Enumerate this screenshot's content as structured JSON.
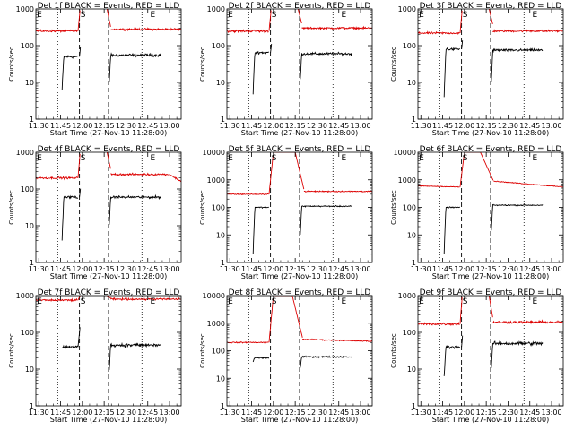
{
  "layout": {
    "rows": 3,
    "cols": 3
  },
  "common": {
    "ylabel": "Counts/sec",
    "xlabel": "Start Time (27-Nov-10 11:28:00)",
    "xticks": [
      "11:30",
      "11:45",
      "12:00",
      "12:15",
      "12:30",
      "12:45",
      "13:00"
    ],
    "xrange_minutes": [
      0,
      100
    ],
    "colors": {
      "events": "#000000",
      "lld": "#dd0000",
      "axes": "#000000"
    }
  },
  "chart_data": [
    {
      "type": "line",
      "title": "Det 1f BLACK = Events, RED = LLD",
      "yticks": [
        "1",
        "10",
        "100",
        "1000"
      ],
      "ylim": [
        1,
        1000
      ],
      "markers": [
        {
          "t": 0,
          "label": "E"
        },
        {
          "t": 30,
          "label": "S"
        },
        {
          "t": 78,
          "label": "E"
        }
      ],
      "dotted_x": [
        15,
        73
      ],
      "dashed_x": [
        30,
        50
      ],
      "series": [
        {
          "name": "Events",
          "segments": [
            {
              "x0": 18,
              "x1": 29,
              "y": 50,
              "ramp_from": 6,
              "ramp_len": 1.2,
              "noise": 0.06
            },
            {
              "x0": 30,
              "x1": 30.8,
              "y": 100,
              "ramp_from": 50,
              "ramp_len": 0.8,
              "noise": 0.0
            },
            {
              "x0": 50.5,
              "x1": 86,
              "y": 55,
              "ramp_from": 10,
              "ramp_len": 1.0,
              "noise": 0.06
            }
          ]
        },
        {
          "name": "LLD",
          "segments": [
            {
              "x0": 0,
              "x1": 29,
              "y": 250,
              "noise": 0.04
            },
            {
              "x0": 29,
              "x1": 30.5,
              "y": 250,
              "ramp_to": 1000,
              "noise": 0.0
            },
            {
              "x0": 49,
              "x1": 51.5,
              "y": 1000,
              "ramp_to": 320,
              "noise": 0.0
            },
            {
              "x0": 51.5,
              "x1": 100,
              "y": 280,
              "noise": 0.04
            }
          ]
        }
      ]
    },
    {
      "type": "line",
      "title": "Det 2f BLACK = Events, RED = LLD",
      "yticks": [
        "1",
        "10",
        "100",
        "1000"
      ],
      "ylim": [
        1,
        1000
      ],
      "markers": [
        {
          "t": 0,
          "label": "E"
        },
        {
          "t": 30,
          "label": "S"
        },
        {
          "t": 78,
          "label": "E"
        }
      ],
      "dotted_x": [
        15,
        73
      ],
      "dashed_x": [
        30,
        50
      ],
      "series": [
        {
          "name": "Events",
          "segments": [
            {
              "x0": 18,
              "x1": 29,
              "y": 65,
              "ramp_from": 5,
              "ramp_len": 1.2,
              "noise": 0.05
            },
            {
              "x0": 30,
              "x1": 30.8,
              "y": 120,
              "ramp_from": 65,
              "ramp_len": 0.8,
              "noise": 0.0
            },
            {
              "x0": 50.5,
              "x1": 86,
              "y": 60,
              "ramp_from": 12,
              "ramp_len": 1.0,
              "noise": 0.05
            }
          ]
        },
        {
          "name": "LLD",
          "segments": [
            {
              "x0": 0,
              "x1": 29,
              "y": 250,
              "noise": 0.05
            },
            {
              "x0": 29,
              "x1": 30.5,
              "y": 250,
              "ramp_to": 1000,
              "noise": 0.0
            },
            {
              "x0": 49,
              "x1": 51.5,
              "y": 1000,
              "ramp_to": 400,
              "noise": 0.0
            },
            {
              "x0": 51.5,
              "x1": 100,
              "y": 300,
              "noise": 0.04
            }
          ]
        }
      ]
    },
    {
      "type": "line",
      "title": "Det 3f BLACK = Events, RED = LLD",
      "yticks": [
        "1",
        "10",
        "100",
        "1000"
      ],
      "ylim": [
        1,
        1000
      ],
      "markers": [
        {
          "t": 0,
          "label": "E"
        },
        {
          "t": 30,
          "label": "S"
        },
        {
          "t": 78,
          "label": "E"
        }
      ],
      "dotted_x": [
        15,
        73
      ],
      "dashed_x": [
        30,
        50
      ],
      "series": [
        {
          "name": "Events",
          "segments": [
            {
              "x0": 18,
              "x1": 29,
              "y": 80,
              "ramp_from": 4,
              "ramp_len": 1.2,
              "noise": 0.05
            },
            {
              "x0": 30,
              "x1": 30.8,
              "y": 150,
              "ramp_from": 80,
              "ramp_len": 0.8,
              "noise": 0.0
            },
            {
              "x0": 50.5,
              "x1": 86,
              "y": 75,
              "ramp_from": 10,
              "ramp_len": 1.0,
              "noise": 0.05
            }
          ]
        },
        {
          "name": "LLD",
          "segments": [
            {
              "x0": 0,
              "x1": 29,
              "y": 220,
              "noise": 0.04
            },
            {
              "x0": 29,
              "x1": 30.5,
              "y": 220,
              "ramp_to": 1000,
              "noise": 0.0
            },
            {
              "x0": 49,
              "x1": 51.5,
              "y": 1000,
              "ramp_to": 380,
              "noise": 0.0
            },
            {
              "x0": 51.5,
              "x1": 100,
              "y": 250,
              "noise": 0.04
            }
          ]
        }
      ]
    },
    {
      "type": "line",
      "title": "Det 4f BLACK = Events, RED = LLD",
      "yticks": [
        "1",
        "10",
        "100",
        "1000"
      ],
      "ylim": [
        1,
        1000
      ],
      "markers": [
        {
          "t": 0,
          "label": "E"
        },
        {
          "t": 30,
          "label": "S"
        },
        {
          "t": 78,
          "label": "E"
        }
      ],
      "dotted_x": [
        15,
        73
      ],
      "dashed_x": [
        30,
        50
      ],
      "series": [
        {
          "name": "Events",
          "segments": [
            {
              "x0": 18,
              "x1": 29,
              "y": 60,
              "ramp_from": 4,
              "ramp_len": 1.2,
              "noise": 0.05
            },
            {
              "x0": 30,
              "x1": 30.8,
              "y": 110,
              "ramp_from": 60,
              "ramp_len": 0.8,
              "noise": 0.0
            },
            {
              "x0": 50.5,
              "x1": 86,
              "y": 60,
              "ramp_from": 10,
              "ramp_len": 1.0,
              "noise": 0.05
            }
          ]
        },
        {
          "name": "LLD",
          "segments": [
            {
              "x0": 0,
              "x1": 29,
              "y": 200,
              "noise": 0.04
            },
            {
              "x0": 29,
              "x1": 30.5,
              "y": 200,
              "ramp_to": 1000,
              "noise": 0.0
            },
            {
              "x0": 49,
              "x1": 51.5,
              "y": 1000,
              "ramp_to": 350,
              "noise": 0.0
            },
            {
              "x0": 51.5,
              "x1": 92,
              "y": 250,
              "noise": 0.04
            },
            {
              "x0": 92,
              "x1": 100,
              "y": 250,
              "ramp_to": 160,
              "noise": 0.03
            }
          ]
        }
      ]
    },
    {
      "type": "line",
      "title": "Det 5f BLACK = Events, RED = LLD",
      "yticks": [
        "1",
        "10",
        "100",
        "1000",
        "10000"
      ],
      "ylim": [
        1,
        10000
      ],
      "markers": [
        {
          "t": 0,
          "label": "E"
        },
        {
          "t": 30,
          "label": "S"
        },
        {
          "t": 78,
          "label": "E"
        }
      ],
      "dotted_x": [
        15,
        73
      ],
      "dashed_x": [
        30,
        50
      ],
      "series": [
        {
          "name": "Events",
          "segments": [
            {
              "x0": 18,
              "x1": 29,
              "y": 100,
              "ramp_from": 2,
              "ramp_len": 1.2,
              "noise": 0.03
            },
            {
              "x0": 50.5,
              "x1": 86,
              "y": 110,
              "ramp_from": 10,
              "ramp_len": 1.0,
              "noise": 0.03
            }
          ]
        },
        {
          "name": "LLD",
          "segments": [
            {
              "x0": 0,
              "x1": 29,
              "y": 300,
              "noise": 0.03
            },
            {
              "x0": 29,
              "x1": 32,
              "y": 300,
              "ramp_to": 10000,
              "noise": 0.0
            },
            {
              "x0": 32,
              "x1": 47,
              "y": 10000,
              "noise": 0.0
            },
            {
              "x0": 47,
              "x1": 53,
              "y": 10000,
              "ramp_to": 450,
              "noise": 0.0
            },
            {
              "x0": 53,
              "x1": 100,
              "y": 380,
              "noise": 0.03
            }
          ]
        }
      ]
    },
    {
      "type": "line",
      "title": "Det 6f BLACK = Events, RED = LLD",
      "yticks": [
        "1",
        "10",
        "100",
        "1000",
        "10000"
      ],
      "ylim": [
        1,
        10000
      ],
      "markers": [
        {
          "t": 0,
          "label": "E"
        },
        {
          "t": 30,
          "label": "S"
        },
        {
          "t": 78,
          "label": "E"
        }
      ],
      "dotted_x": [
        15,
        73
      ],
      "dashed_x": [
        30,
        50
      ],
      "series": [
        {
          "name": "Events",
          "segments": [
            {
              "x0": 18,
              "x1": 29,
              "y": 100,
              "ramp_from": 2,
              "ramp_len": 1.2,
              "noise": 0.03
            },
            {
              "x0": 50.5,
              "x1": 86,
              "y": 120,
              "ramp_from": 15,
              "ramp_len": 1.0,
              "noise": 0.03
            }
          ]
        },
        {
          "name": "LLD",
          "segments": [
            {
              "x0": 0,
              "x1": 29,
              "y": 600,
              "ramp_to": 550,
              "noise": 0.02
            },
            {
              "x0": 29,
              "x1": 32,
              "y": 550,
              "ramp_to": 10000,
              "noise": 0.0
            },
            {
              "x0": 32,
              "x1": 43,
              "y": 10000,
              "noise": 0.0
            },
            {
              "x0": 43,
              "x1": 52,
              "y": 10000,
              "ramp_to": 900,
              "noise": 0.0
            },
            {
              "x0": 52,
              "x1": 100,
              "y": 900,
              "ramp_to": 550,
              "noise": 0.02
            }
          ]
        }
      ]
    },
    {
      "type": "line",
      "title": "Det 7f BLACK = Events, RED = LLD",
      "yticks": [
        "1",
        "10",
        "100",
        "1000"
      ],
      "ylim": [
        1,
        1000
      ],
      "markers": [
        {
          "t": 0,
          "label": "E"
        },
        {
          "t": 30,
          "label": "S"
        },
        {
          "t": 78,
          "label": "E"
        }
      ],
      "dotted_x": [
        15,
        73
      ],
      "dashed_x": [
        30,
        50
      ],
      "series": [
        {
          "name": "Events",
          "segments": [
            {
              "x0": 18,
              "x1": 29,
              "y": 40,
              "noise": 0.06
            },
            {
              "x0": 29,
              "x1": 30.5,
              "y": 40,
              "ramp_to": 150,
              "noise": 0.0
            },
            {
              "x0": 50.5,
              "x1": 86,
              "y": 45,
              "ramp_from": 10,
              "ramp_len": 1.0,
              "noise": 0.07
            }
          ]
        },
        {
          "name": "LLD",
          "segments": [
            {
              "x0": 0,
              "x1": 29,
              "y": 750,
              "noise": 0.04
            },
            {
              "x0": 29,
              "x1": 30.5,
              "y": 750,
              "ramp_to": 1000,
              "noise": 0.0
            },
            {
              "x0": 49,
              "x1": 51.5,
              "y": 1000,
              "ramp_to": 850,
              "noise": 0.0
            },
            {
              "x0": 51.5,
              "x1": 100,
              "y": 800,
              "noise": 0.04
            }
          ]
        }
      ]
    },
    {
      "type": "line",
      "title": "Det 8f BLACK = Events, RED = LLD",
      "yticks": [
        "1",
        "10",
        "100",
        "1000",
        "10000"
      ],
      "ylim": [
        1,
        10000
      ],
      "markers": [
        {
          "t": 0,
          "label": "E"
        },
        {
          "t": 30,
          "label": "S"
        },
        {
          "t": 78,
          "label": "E"
        }
      ],
      "dotted_x": [
        15,
        73
      ],
      "dashed_x": [
        30,
        50
      ],
      "series": [
        {
          "name": "Events",
          "segments": [
            {
              "x0": 18,
              "x1": 29,
              "y": 55,
              "ramp_from": 40,
              "ramp_len": 1.0,
              "noise": 0.04
            },
            {
              "x0": 50.5,
              "x1": 86,
              "y": 60,
              "ramp_from": 25,
              "ramp_len": 1.0,
              "noise": 0.04
            }
          ]
        },
        {
          "name": "LLD",
          "segments": [
            {
              "x0": 0,
              "x1": 29,
              "y": 200,
              "noise": 0.03
            },
            {
              "x0": 29,
              "x1": 32,
              "y": 200,
              "ramp_to": 10000,
              "noise": 0.0
            },
            {
              "x0": 32,
              "x1": 45,
              "y": 10000,
              "noise": 0.0
            },
            {
              "x0": 45,
              "x1": 52,
              "y": 10000,
              "ramp_to": 300,
              "noise": 0.0
            },
            {
              "x0": 52,
              "x1": 100,
              "y": 260,
              "ramp_to": 220,
              "noise": 0.03
            }
          ]
        }
      ]
    },
    {
      "type": "line",
      "title": "Det 9f BLACK = Events, RED = LLD",
      "yticks": [
        "1",
        "10",
        "100",
        "1000"
      ],
      "ylim": [
        1,
        1000
      ],
      "markers": [
        {
          "t": 0,
          "label": "E"
        },
        {
          "t": 30,
          "label": "S"
        },
        {
          "t": 78,
          "label": "E"
        }
      ],
      "dotted_x": [
        15,
        73
      ],
      "dashed_x": [
        30,
        50
      ],
      "series": [
        {
          "name": "Events",
          "segments": [
            {
              "x0": 18,
              "x1": 29,
              "y": 40,
              "ramp_from": 6,
              "ramp_len": 1.2,
              "noise": 0.06
            },
            {
              "x0": 30,
              "x1": 30.8,
              "y": 90,
              "ramp_from": 40,
              "ramp_len": 0.8,
              "noise": 0.0
            },
            {
              "x0": 50.5,
              "x1": 86,
              "y": 50,
              "ramp_from": 10,
              "ramp_len": 1.0,
              "noise": 0.07
            }
          ]
        },
        {
          "name": "LLD",
          "segments": [
            {
              "x0": 0,
              "x1": 29,
              "y": 170,
              "noise": 0.05
            },
            {
              "x0": 29,
              "x1": 30.5,
              "y": 170,
              "ramp_to": 1000,
              "noise": 0.0
            },
            {
              "x0": 49,
              "x1": 51.5,
              "y": 1000,
              "ramp_to": 250,
              "noise": 0.0
            },
            {
              "x0": 51.5,
              "x1": 100,
              "y": 190,
              "noise": 0.05
            }
          ]
        }
      ]
    }
  ]
}
